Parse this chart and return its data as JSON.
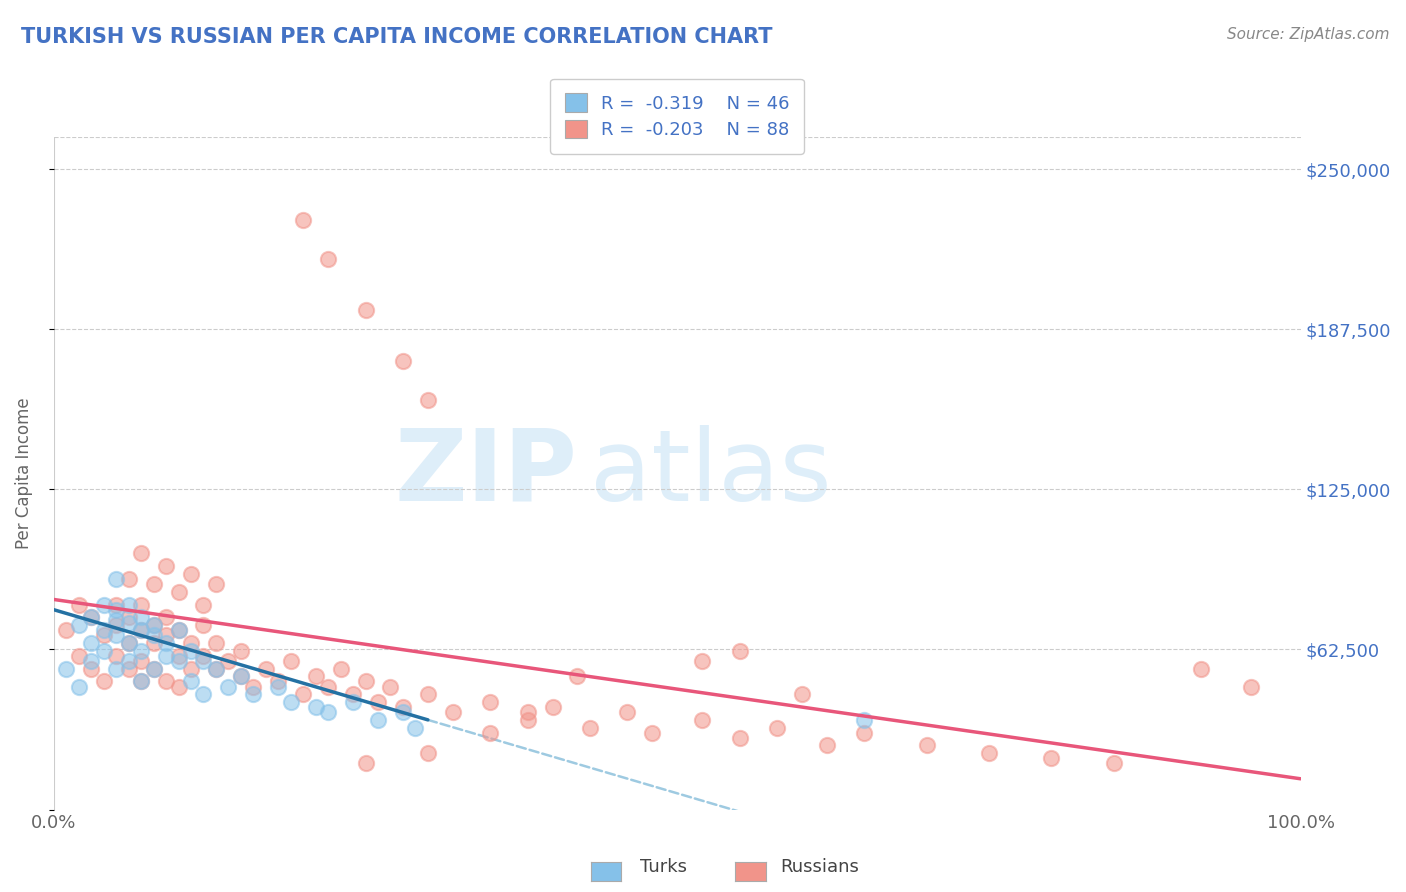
{
  "title": "TURKISH VS RUSSIAN PER CAPITA INCOME CORRELATION CHART",
  "source": "Source: ZipAtlas.com",
  "ylabel": "Per Capita Income",
  "xlim": [
    0.0,
    1.0
  ],
  "ylim": [
    0,
    262500
  ],
  "yticks": [
    0,
    62500,
    125000,
    187500,
    250000
  ],
  "ytick_labels": [
    "",
    "$62,500",
    "$125,000",
    "$187,500",
    "$250,000"
  ],
  "xticks": [
    0.0,
    0.25,
    0.5,
    0.75,
    1.0
  ],
  "xtick_labels": [
    "0.0%",
    "",
    "",
    "",
    "100.0%"
  ],
  "turks_color": "#85c1e9",
  "russians_color": "#f1948a",
  "turks_line_color": "#2471a3",
  "russians_line_color": "#e8567a",
  "russians_dash_color": "#9ecae1",
  "background_color": "#ffffff",
  "watermark_color": "#d6eaf8",
  "legend_r_turks": "R =  -0.319",
  "legend_n_turks": "N = 46",
  "legend_r_russians": "R =  -0.203",
  "legend_n_russians": "N = 88",
  "turks_x": [
    0.01,
    0.02,
    0.02,
    0.03,
    0.03,
    0.03,
    0.04,
    0.04,
    0.04,
    0.05,
    0.05,
    0.05,
    0.05,
    0.06,
    0.06,
    0.06,
    0.06,
    0.07,
    0.07,
    0.07,
    0.07,
    0.08,
    0.08,
    0.08,
    0.09,
    0.09,
    0.1,
    0.1,
    0.11,
    0.11,
    0.12,
    0.12,
    0.13,
    0.14,
    0.15,
    0.16,
    0.18,
    0.19,
    0.21,
    0.22,
    0.24,
    0.26,
    0.28,
    0.29,
    0.05,
    0.65
  ],
  "turks_y": [
    55000,
    72000,
    48000,
    65000,
    75000,
    58000,
    70000,
    62000,
    80000,
    74000,
    68000,
    55000,
    78000,
    73000,
    65000,
    58000,
    80000,
    70000,
    62000,
    75000,
    50000,
    68000,
    55000,
    72000,
    60000,
    65000,
    58000,
    70000,
    62000,
    50000,
    58000,
    45000,
    55000,
    48000,
    52000,
    45000,
    48000,
    42000,
    40000,
    38000,
    42000,
    35000,
    38000,
    32000,
    90000,
    35000
  ],
  "russians_x": [
    0.01,
    0.02,
    0.02,
    0.03,
    0.03,
    0.04,
    0.04,
    0.05,
    0.05,
    0.05,
    0.06,
    0.06,
    0.06,
    0.07,
    0.07,
    0.07,
    0.07,
    0.08,
    0.08,
    0.08,
    0.09,
    0.09,
    0.09,
    0.1,
    0.1,
    0.1,
    0.11,
    0.11,
    0.12,
    0.12,
    0.13,
    0.13,
    0.14,
    0.15,
    0.15,
    0.16,
    0.17,
    0.18,
    0.19,
    0.2,
    0.21,
    0.22,
    0.23,
    0.24,
    0.25,
    0.26,
    0.27,
    0.28,
    0.3,
    0.32,
    0.35,
    0.38,
    0.4,
    0.43,
    0.46,
    0.48,
    0.52,
    0.55,
    0.58,
    0.62,
    0.65,
    0.7,
    0.75,
    0.8,
    0.85,
    0.92,
    0.96,
    0.2,
    0.22,
    0.25,
    0.28,
    0.3,
    0.06,
    0.07,
    0.08,
    0.09,
    0.1,
    0.11,
    0.12,
    0.13,
    0.52,
    0.55,
    0.42,
    0.6,
    0.38,
    0.35,
    0.3,
    0.25
  ],
  "russians_y": [
    70000,
    80000,
    60000,
    75000,
    55000,
    68000,
    50000,
    72000,
    60000,
    80000,
    65000,
    75000,
    55000,
    70000,
    58000,
    80000,
    50000,
    65000,
    72000,
    55000,
    68000,
    50000,
    75000,
    60000,
    70000,
    48000,
    65000,
    55000,
    60000,
    72000,
    55000,
    65000,
    58000,
    52000,
    62000,
    48000,
    55000,
    50000,
    58000,
    45000,
    52000,
    48000,
    55000,
    45000,
    50000,
    42000,
    48000,
    40000,
    45000,
    38000,
    42000,
    35000,
    40000,
    32000,
    38000,
    30000,
    35000,
    28000,
    32000,
    25000,
    30000,
    25000,
    22000,
    20000,
    18000,
    55000,
    48000,
    230000,
    215000,
    195000,
    175000,
    160000,
    90000,
    100000,
    88000,
    95000,
    85000,
    92000,
    80000,
    88000,
    58000,
    62000,
    52000,
    45000,
    38000,
    30000,
    22000,
    18000
  ],
  "turks_line_x0": 0.0,
  "turks_line_y0": 78000,
  "turks_line_x1": 0.3,
  "turks_line_y1": 35000,
  "russians_line_x0": 0.0,
  "russians_line_y0": 82000,
  "russians_line_x1": 1.0,
  "russians_line_y1": 12000
}
